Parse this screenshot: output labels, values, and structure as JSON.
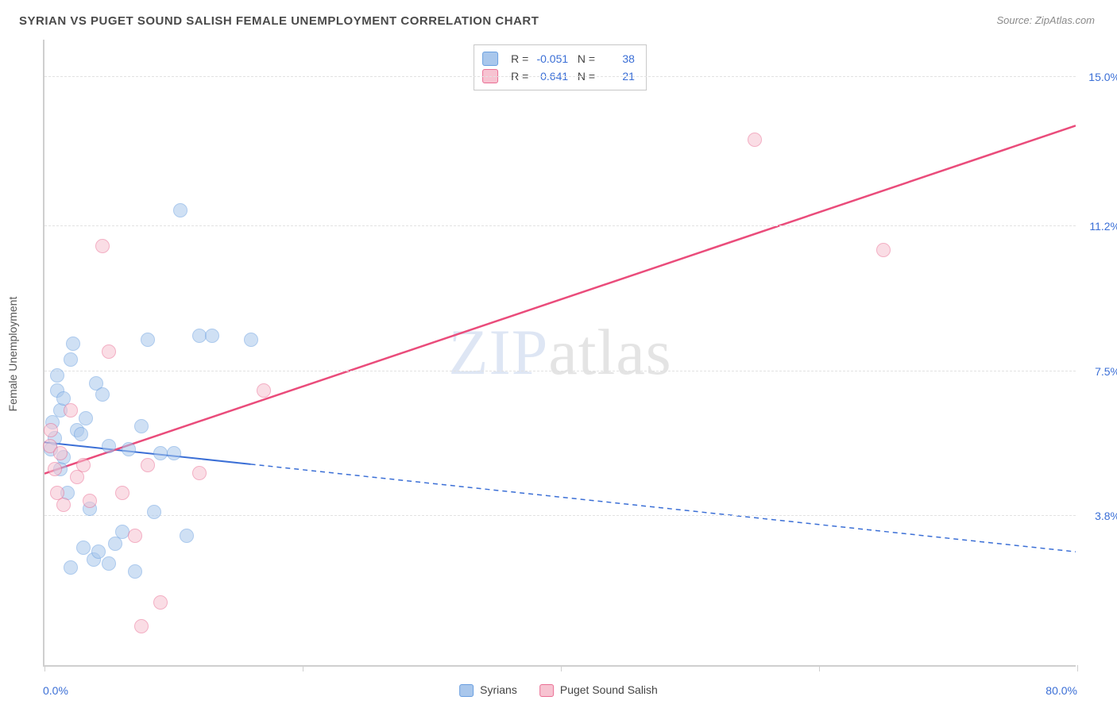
{
  "title": "SYRIAN VS PUGET SOUND SALISH FEMALE UNEMPLOYMENT CORRELATION CHART",
  "source_label": "Source: ZipAtlas.com",
  "ylabel": "Female Unemployment",
  "watermark": {
    "bold_part": "ZIP",
    "thin_part": "atlas"
  },
  "chart": {
    "type": "scatter",
    "xlim": [
      0.0,
      80.0
    ],
    "ylim": [
      0.0,
      16.0
    ],
    "x_axis_label_left": "0.0%",
    "x_axis_label_right": "80.0%",
    "x_ticks": [
      0,
      20,
      40,
      60,
      80
    ],
    "y_gridlines": [
      3.8,
      7.5,
      11.2,
      15.0
    ],
    "y_tick_labels": [
      "3.8%",
      "7.5%",
      "11.2%",
      "15.0%"
    ],
    "grid_color": "#e2e2e2",
    "axis_color": "#cfcfcf",
    "background_color": "#ffffff",
    "tick_label_color": "#3b6fd6",
    "marker_radius": 9,
    "marker_stroke_width": 1.5,
    "series": [
      {
        "name": "Syrians",
        "fill_color": "#a9c7ec",
        "stroke_color": "#6a9fe0",
        "fill_opacity": 0.55,
        "stats": {
          "R": "-0.051",
          "N": "38"
        },
        "trendline": {
          "start": [
            0.0,
            5.7
          ],
          "end": [
            80.0,
            2.9
          ],
          "solid_until_x": 16.0,
          "color": "#3b6fd6",
          "width": 2,
          "dash": "6,5"
        },
        "points": [
          [
            0.5,
            5.5
          ],
          [
            0.6,
            6.2
          ],
          [
            0.8,
            5.8
          ],
          [
            1.0,
            7.0
          ],
          [
            1.0,
            7.4
          ],
          [
            1.2,
            6.5
          ],
          [
            1.2,
            5.0
          ],
          [
            1.5,
            5.3
          ],
          [
            1.5,
            6.8
          ],
          [
            1.8,
            4.4
          ],
          [
            2.0,
            7.8
          ],
          [
            2.0,
            2.5
          ],
          [
            2.2,
            8.2
          ],
          [
            2.5,
            6.0
          ],
          [
            2.8,
            5.9
          ],
          [
            3.0,
            3.0
          ],
          [
            3.2,
            6.3
          ],
          [
            3.5,
            4.0
          ],
          [
            3.8,
            2.7
          ],
          [
            4.0,
            7.2
          ],
          [
            4.2,
            2.9
          ],
          [
            4.5,
            6.9
          ],
          [
            5.0,
            2.6
          ],
          [
            5.0,
            5.6
          ],
          [
            5.5,
            3.1
          ],
          [
            6.0,
            3.4
          ],
          [
            6.5,
            5.5
          ],
          [
            7.0,
            2.4
          ],
          [
            7.5,
            6.1
          ],
          [
            8.0,
            8.3
          ],
          [
            8.5,
            3.9
          ],
          [
            9.0,
            5.4
          ],
          [
            10.0,
            5.4
          ],
          [
            10.5,
            11.6
          ],
          [
            11.0,
            3.3
          ],
          [
            12.0,
            8.4
          ],
          [
            13.0,
            8.4
          ],
          [
            16.0,
            8.3
          ]
        ]
      },
      {
        "name": "Puget Sound Salish",
        "fill_color": "#f7c3d1",
        "stroke_color": "#ea6e94",
        "fill_opacity": 0.55,
        "stats": {
          "R": "0.641",
          "N": "21"
        },
        "trendline": {
          "start": [
            0.0,
            4.9
          ],
          "end": [
            80.0,
            13.8
          ],
          "solid_until_x": 80.0,
          "color": "#ea4c7b",
          "width": 2.5,
          "dash": null
        },
        "points": [
          [
            0.4,
            5.6
          ],
          [
            0.5,
            6.0
          ],
          [
            0.8,
            5.0
          ],
          [
            1.0,
            4.4
          ],
          [
            1.2,
            5.4
          ],
          [
            1.5,
            4.1
          ],
          [
            2.0,
            6.5
          ],
          [
            2.5,
            4.8
          ],
          [
            3.0,
            5.1
          ],
          [
            3.5,
            4.2
          ],
          [
            4.5,
            10.7
          ],
          [
            5.0,
            8.0
          ],
          [
            6.0,
            4.4
          ],
          [
            7.0,
            3.3
          ],
          [
            7.5,
            1.0
          ],
          [
            8.0,
            5.1
          ],
          [
            9.0,
            1.6
          ],
          [
            12.0,
            4.9
          ],
          [
            17.0,
            7.0
          ],
          [
            55.0,
            13.4
          ],
          [
            65.0,
            10.6
          ]
        ]
      }
    ]
  },
  "typography": {
    "title_fontsize": 15,
    "label_fontsize": 14,
    "watermark_fontsize": 82
  }
}
